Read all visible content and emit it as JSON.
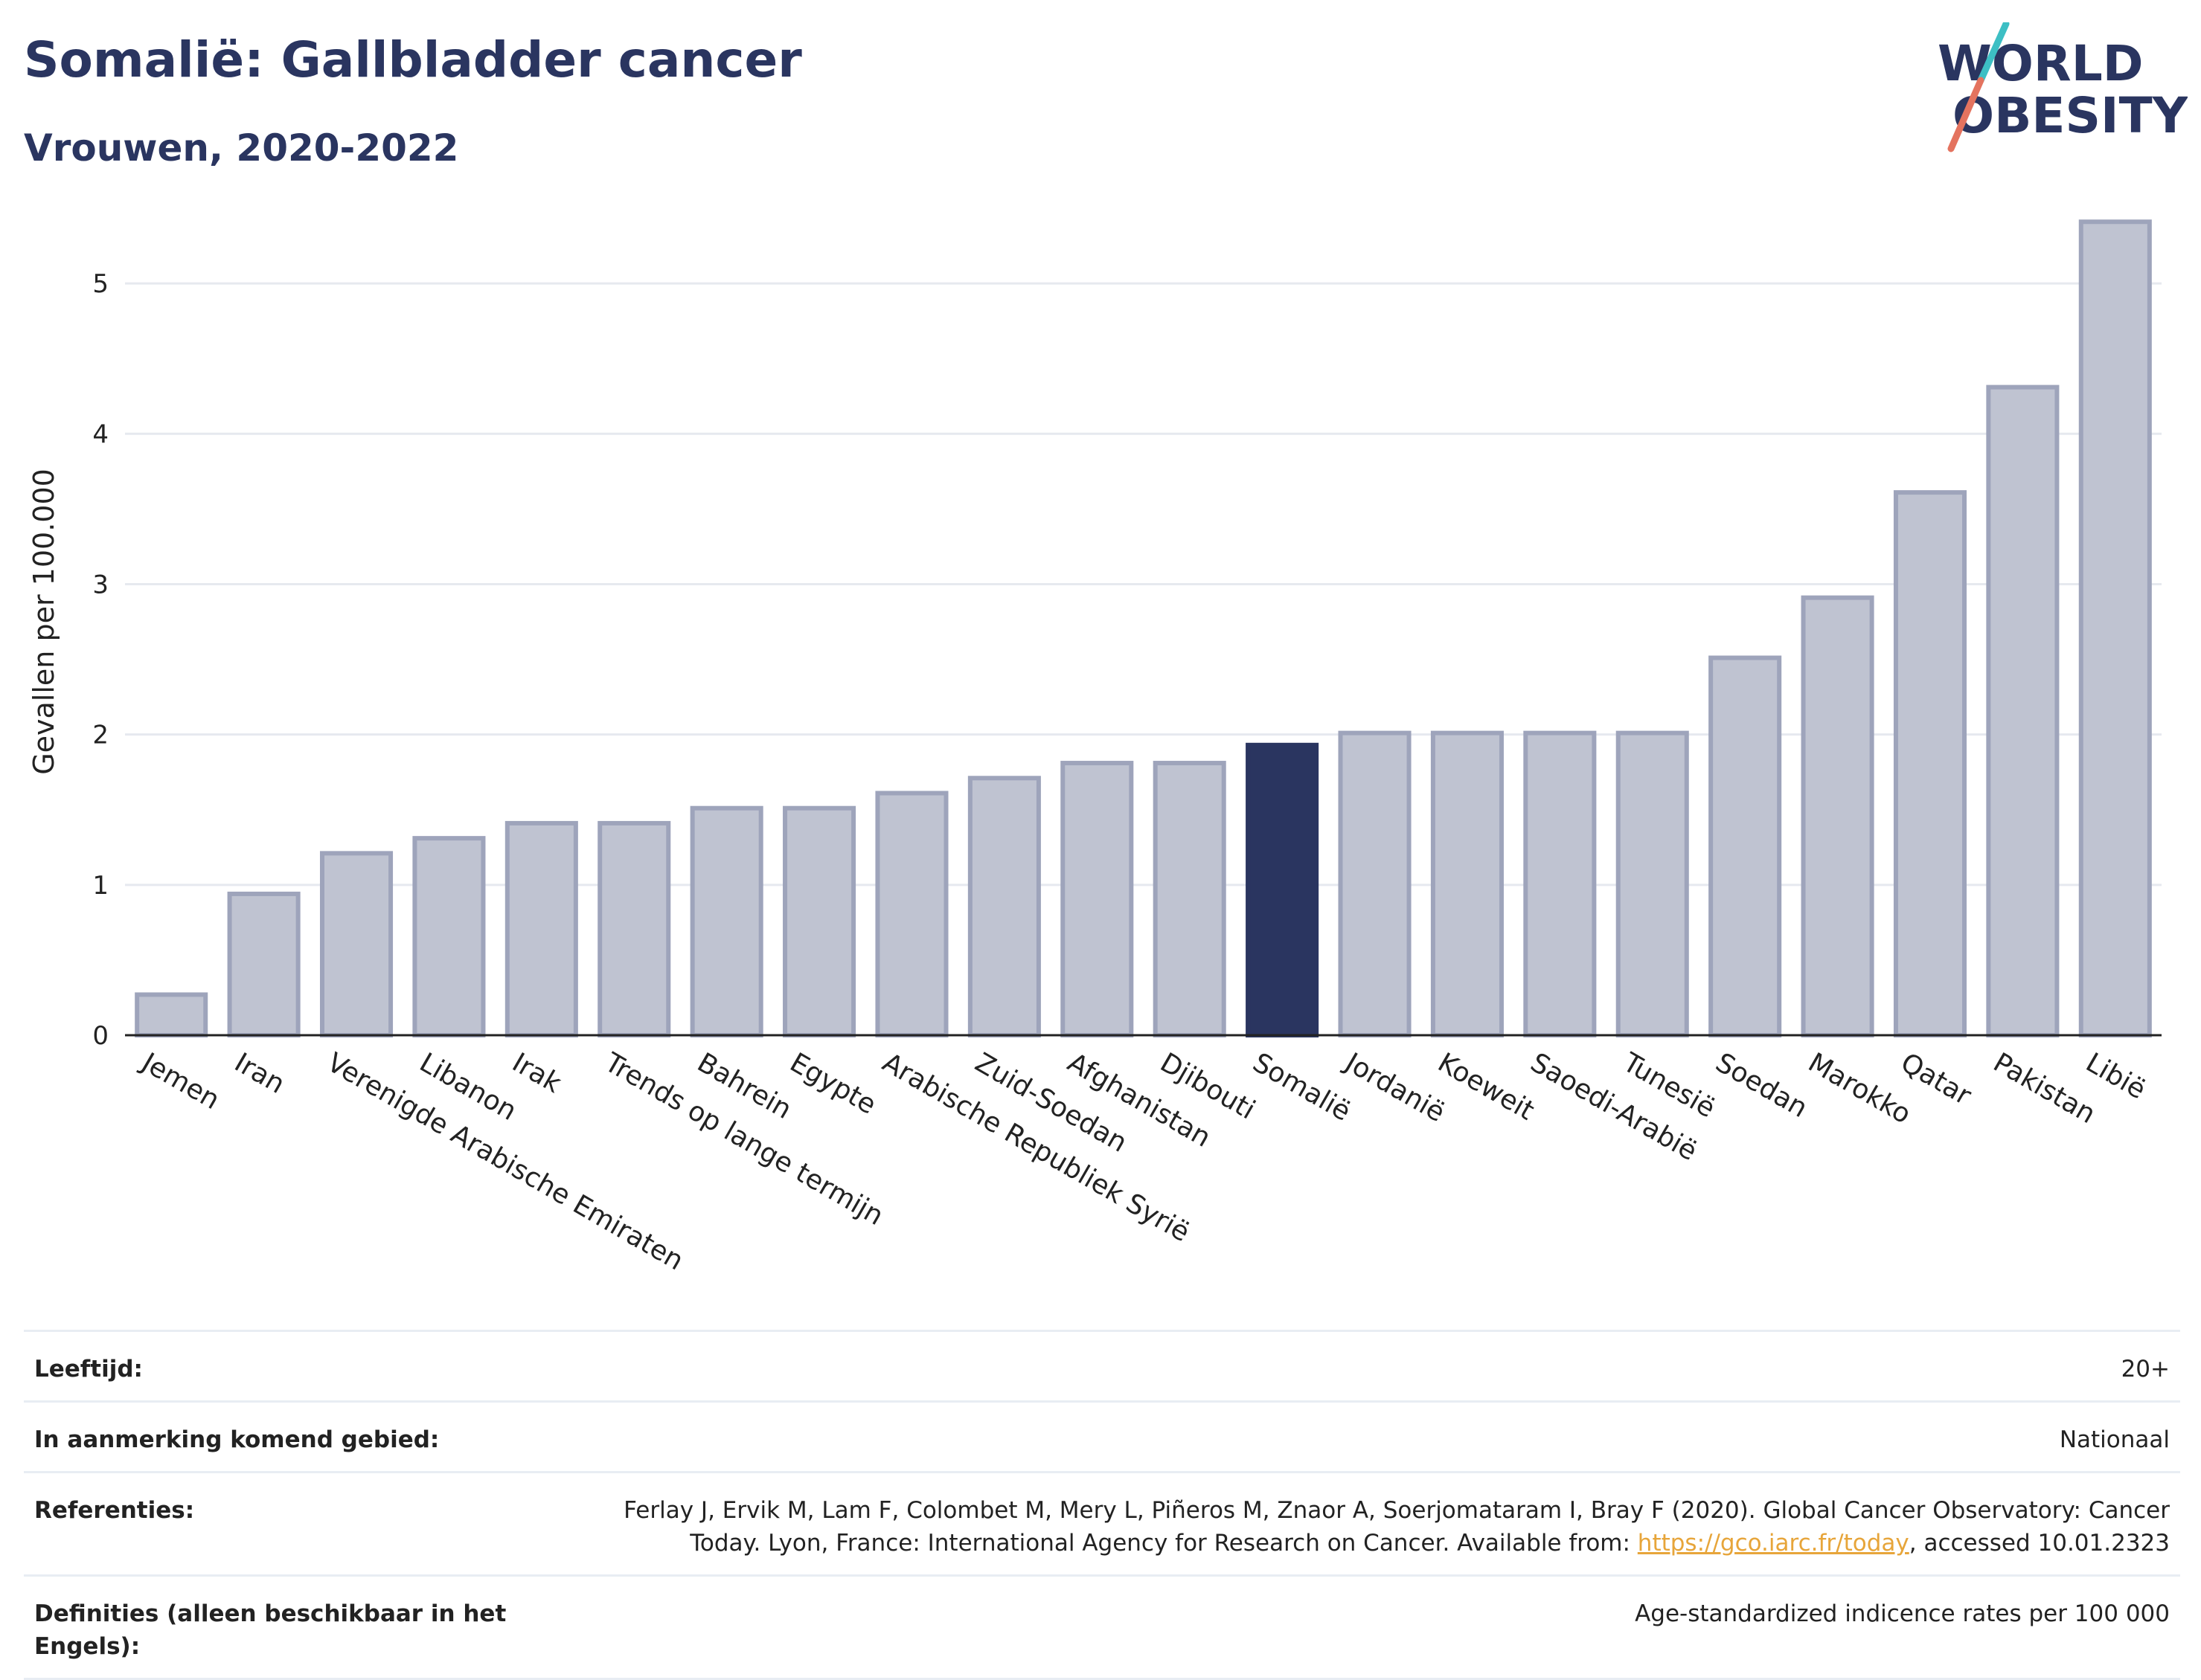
{
  "header": {
    "title": "Somalië: Gallbladder cancer",
    "subtitle": "Vrouwen, 2020-2022"
  },
  "logo": {
    "line1": "WORLD",
    "line2": "OBESITY",
    "accent_colors": [
      "#3dbfc4",
      "#e4735f"
    ]
  },
  "colors": {
    "bar_default": "#bfc3d1",
    "bar_border": "#9ea4bb",
    "bar_highlight": "#2a3560",
    "gridline": "#e6e9ef",
    "axis": "#222222"
  },
  "chart_data": {
    "type": "bar",
    "ylabel": "Gevallen per 100.000",
    "ylim": [
      0,
      5.5
    ],
    "yticks": [
      0,
      1,
      2,
      3,
      4,
      5
    ],
    "grid": true,
    "highlight": "Somalië",
    "categories": [
      "Jemen",
      "Iran",
      "Verenigde Arabische Emiraten",
      "Libanon",
      "Irak",
      "Trends op lange termijn",
      "Bahrein",
      "Egypte",
      "Arabische Republiek Syrië",
      "Zuid-Soedan",
      "Afghanistan",
      "Djibouti",
      "Somalië",
      "Jordanië",
      "Koeweit",
      "Saoedi-Arabië",
      "Tunesië",
      "Soedan",
      "Marokko",
      "Qatar",
      "Pakistan",
      "Libië"
    ],
    "values": [
      0.27,
      0.94,
      1.21,
      1.31,
      1.41,
      1.41,
      1.51,
      1.51,
      1.61,
      1.71,
      1.81,
      1.81,
      1.93,
      2.01,
      2.01,
      2.01,
      2.01,
      2.51,
      2.91,
      3.61,
      4.31,
      5.41
    ]
  },
  "meta": {
    "rows": [
      {
        "label": "Leeftijd:",
        "value": "20+"
      },
      {
        "label": "In aanmerking komend gebied:",
        "value": "Nationaal"
      },
      {
        "label": "Referenties:",
        "value_before": "Ferlay J, Ervik M, Lam F, Colombet M, Mery L, Piñeros M, Znaor A, Soerjomataram I, Bray F (2020). Global Cancer Observatory: Cancer Today. Lyon, France: International Agency for Research on Cancer. Available from: ",
        "link": "https://gco.iarc.fr/today",
        "value_after": ", accessed 10.01.2323"
      },
      {
        "label": "Definities (alleen beschikbaar in het Engels):",
        "value": "Age-standardized indicence rates per 100 000"
      }
    ]
  }
}
